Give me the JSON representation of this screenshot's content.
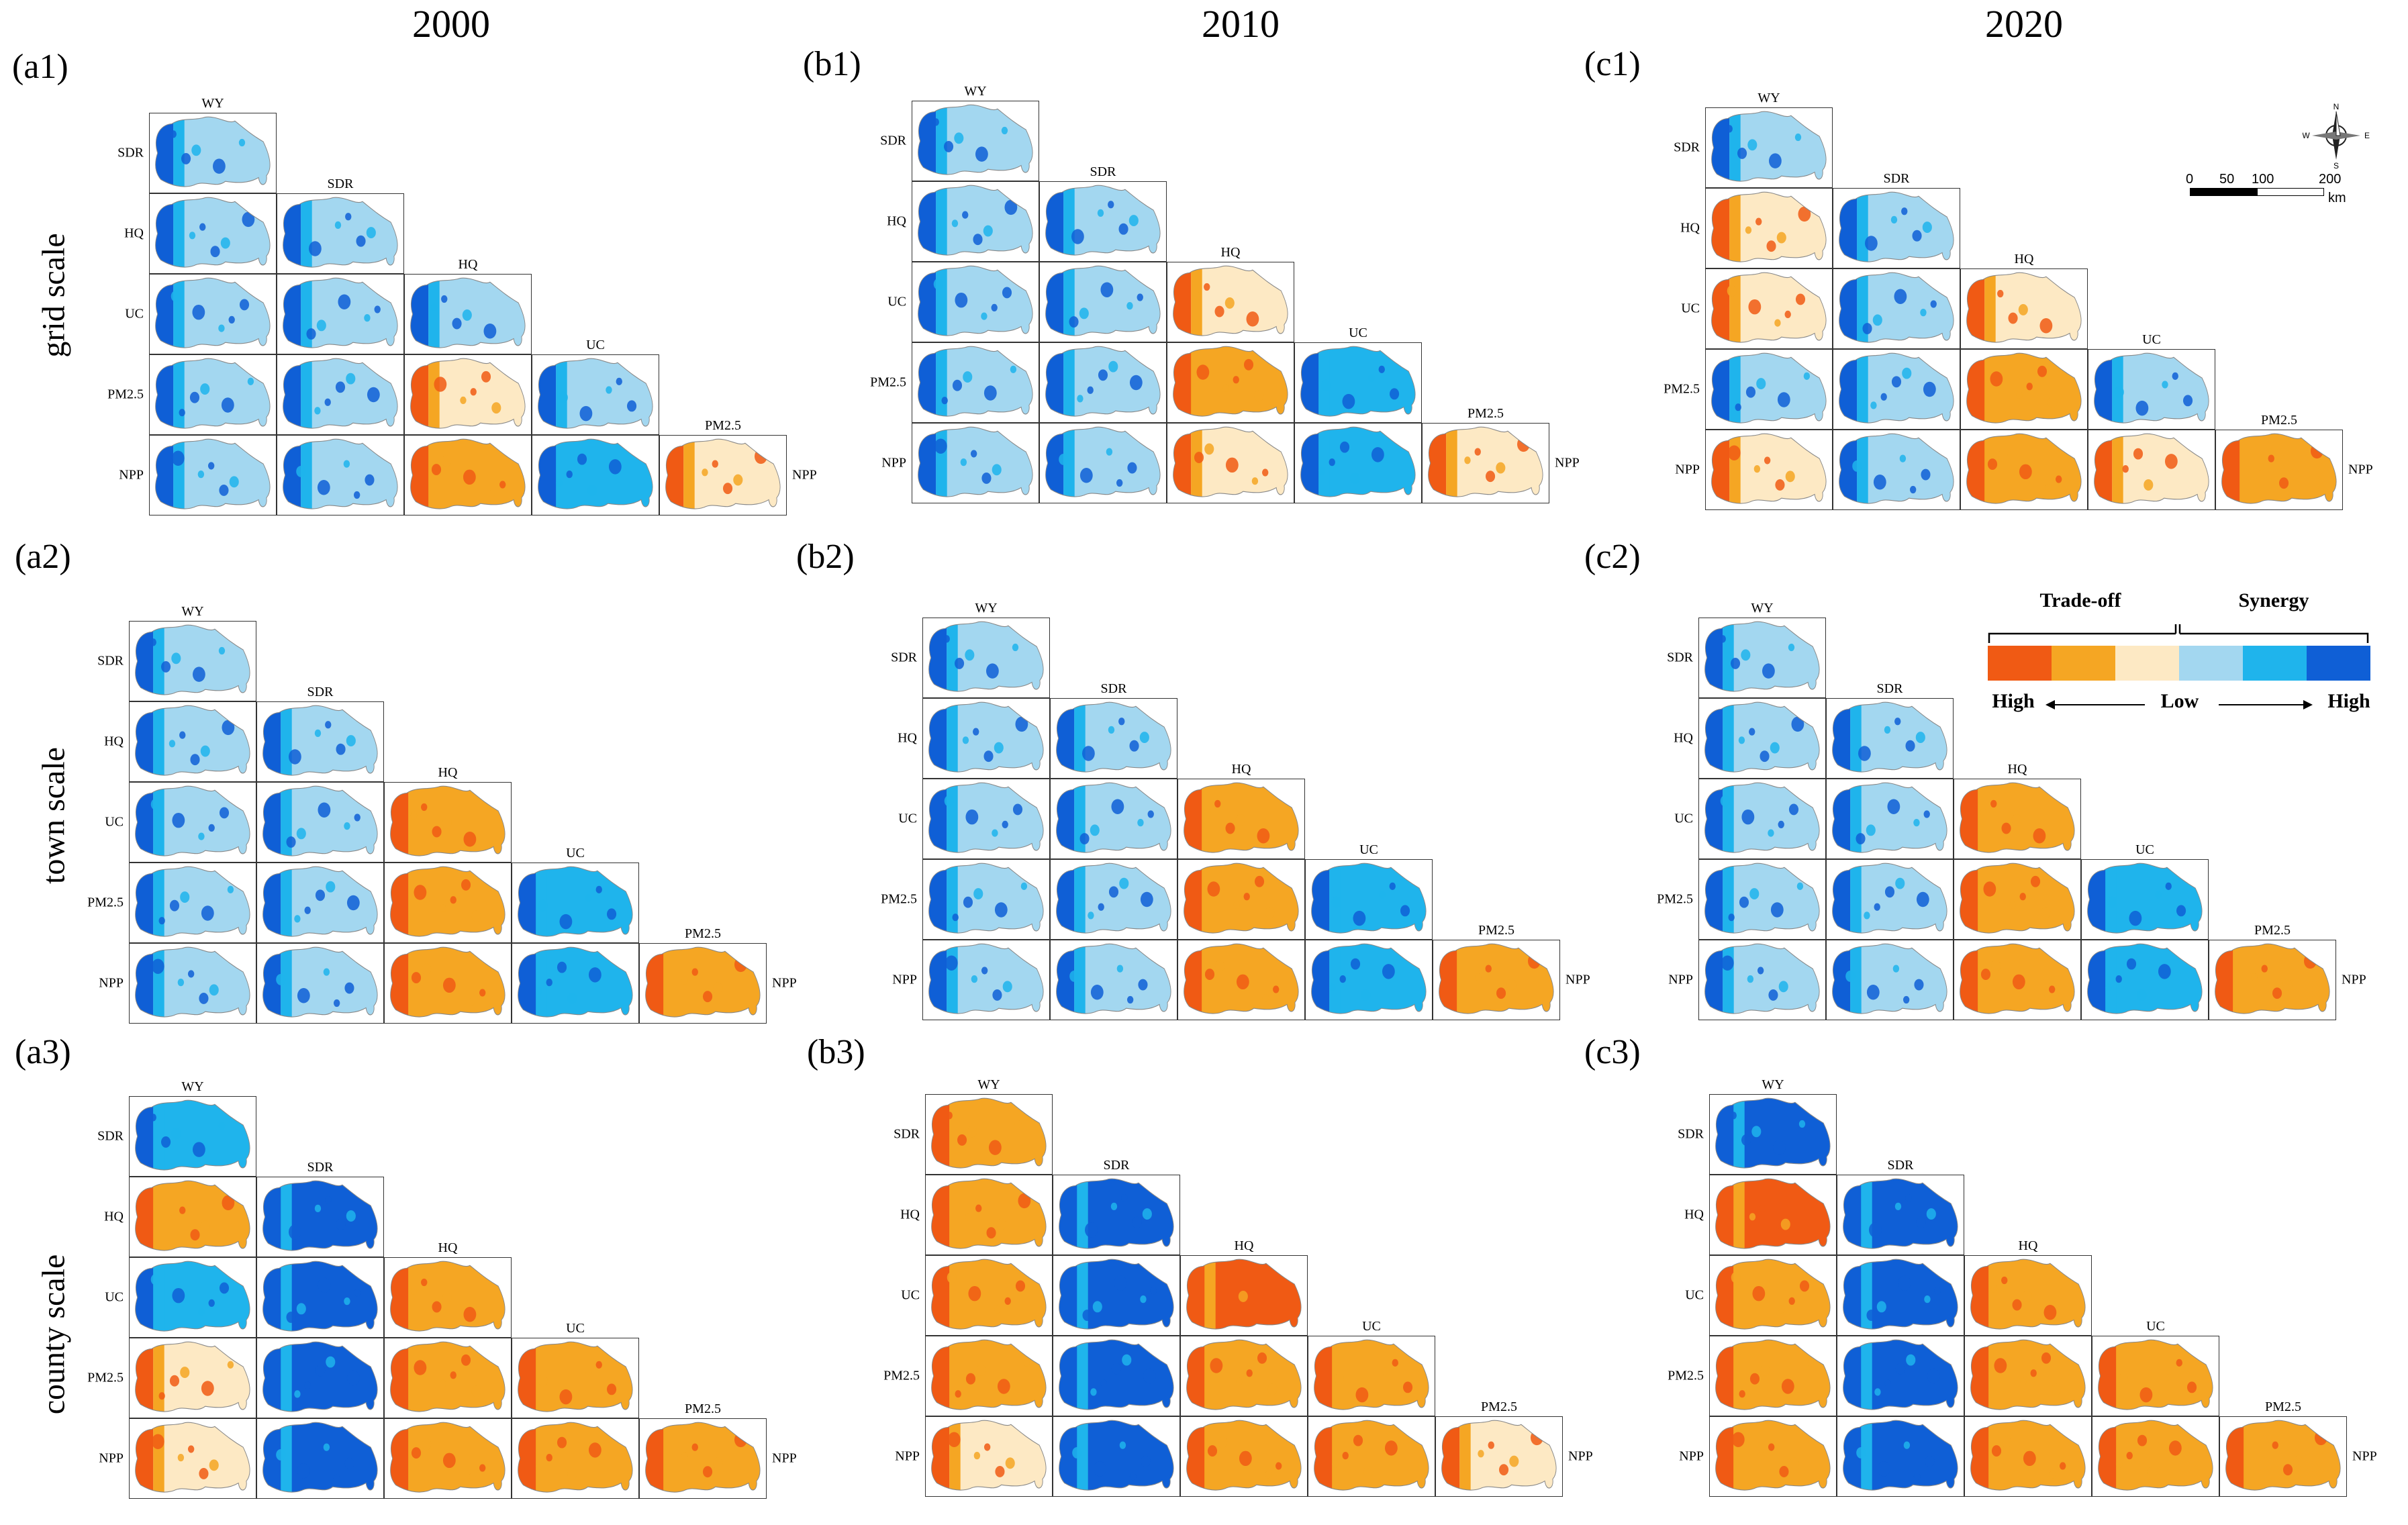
{
  "years": [
    "2000",
    "2010",
    "2020"
  ],
  "scale_labels": [
    "grid scale",
    "town scale",
    "county scale"
  ],
  "panel_labels": [
    [
      "(a1)",
      "(a2)",
      "(a3)"
    ],
    [
      "(b1)",
      "(b2)",
      "(b3)"
    ],
    [
      "(c1)",
      "(c2)",
      "(c3)"
    ]
  ],
  "services": [
    "WY",
    "SDR",
    "HQ",
    "UC",
    "PM2.5",
    "NPP"
  ],
  "legend": {
    "trade_off": "Trade-off",
    "synergy": "Synergy",
    "high_left": "High",
    "low": "Low",
    "high_right": "High",
    "colors": [
      "#f05a14",
      "#f5a623",
      "#fde9c4",
      "#a3d7f0",
      "#1fb4ec",
      "#0f5fd6"
    ],
    "class_names": [
      "high trade-off",
      "medium trade-off",
      "low trade-off",
      "low synergy",
      "medium synergy",
      "high synergy"
    ]
  },
  "compass": {
    "n": "N",
    "s": "S",
    "e": "E",
    "w": "W"
  },
  "map_scale": {
    "ticks": [
      "0",
      "50",
      "100",
      "200"
    ],
    "unit": "km"
  },
  "relation_matrices": {
    "_legend_index": "0 high trade-off, 1 medium trade-off, 2 low trade-off, 3 low synergy, 4 medium synergy, 5 high synergy; rows SDR..NPP, columns WY..PM2.5",
    "grid_2000": [
      [
        3
      ],
      [
        3,
        3
      ],
      [
        3,
        3,
        3
      ],
      [
        3,
        3,
        2,
        3
      ],
      [
        3,
        3,
        1,
        4,
        2
      ]
    ],
    "grid_2010": [
      [
        3
      ],
      [
        3,
        3
      ],
      [
        3,
        3,
        2
      ],
      [
        3,
        3,
        1,
        4
      ],
      [
        3,
        3,
        2,
        4,
        2
      ]
    ],
    "grid_2020": [
      [
        3
      ],
      [
        2,
        3
      ],
      [
        2,
        3,
        2
      ],
      [
        3,
        3,
        1,
        3
      ],
      [
        2,
        3,
        1,
        2,
        1
      ]
    ],
    "town_2000": [
      [
        3
      ],
      [
        3,
        3
      ],
      [
        3,
        3,
        1
      ],
      [
        3,
        3,
        1,
        4
      ],
      [
        3,
        3,
        1,
        4,
        1
      ]
    ],
    "town_2010": [
      [
        3
      ],
      [
        3,
        3
      ],
      [
        3,
        3,
        1
      ],
      [
        3,
        3,
        1,
        4
      ],
      [
        3,
        3,
        1,
        4,
        1
      ]
    ],
    "town_2020": [
      [
        3
      ],
      [
        3,
        3
      ],
      [
        3,
        3,
        1
      ],
      [
        3,
        3,
        1,
        4
      ],
      [
        3,
        3,
        1,
        4,
        1
      ]
    ],
    "county_2000": [
      [
        4
      ],
      [
        1,
        5
      ],
      [
        4,
        5,
        1
      ],
      [
        2,
        5,
        1,
        1
      ],
      [
        2,
        5,
        1,
        1,
        1
      ]
    ],
    "county_2010": [
      [
        1
      ],
      [
        1,
        5
      ],
      [
        1,
        5,
        0
      ],
      [
        1,
        5,
        1,
        1
      ],
      [
        2,
        5,
        1,
        1,
        2
      ]
    ],
    "county_2020": [
      [
        5
      ],
      [
        0,
        5
      ],
      [
        1,
        5,
        1
      ],
      [
        1,
        5,
        1,
        1
      ],
      [
        1,
        5,
        1,
        1,
        1
      ]
    ]
  }
}
